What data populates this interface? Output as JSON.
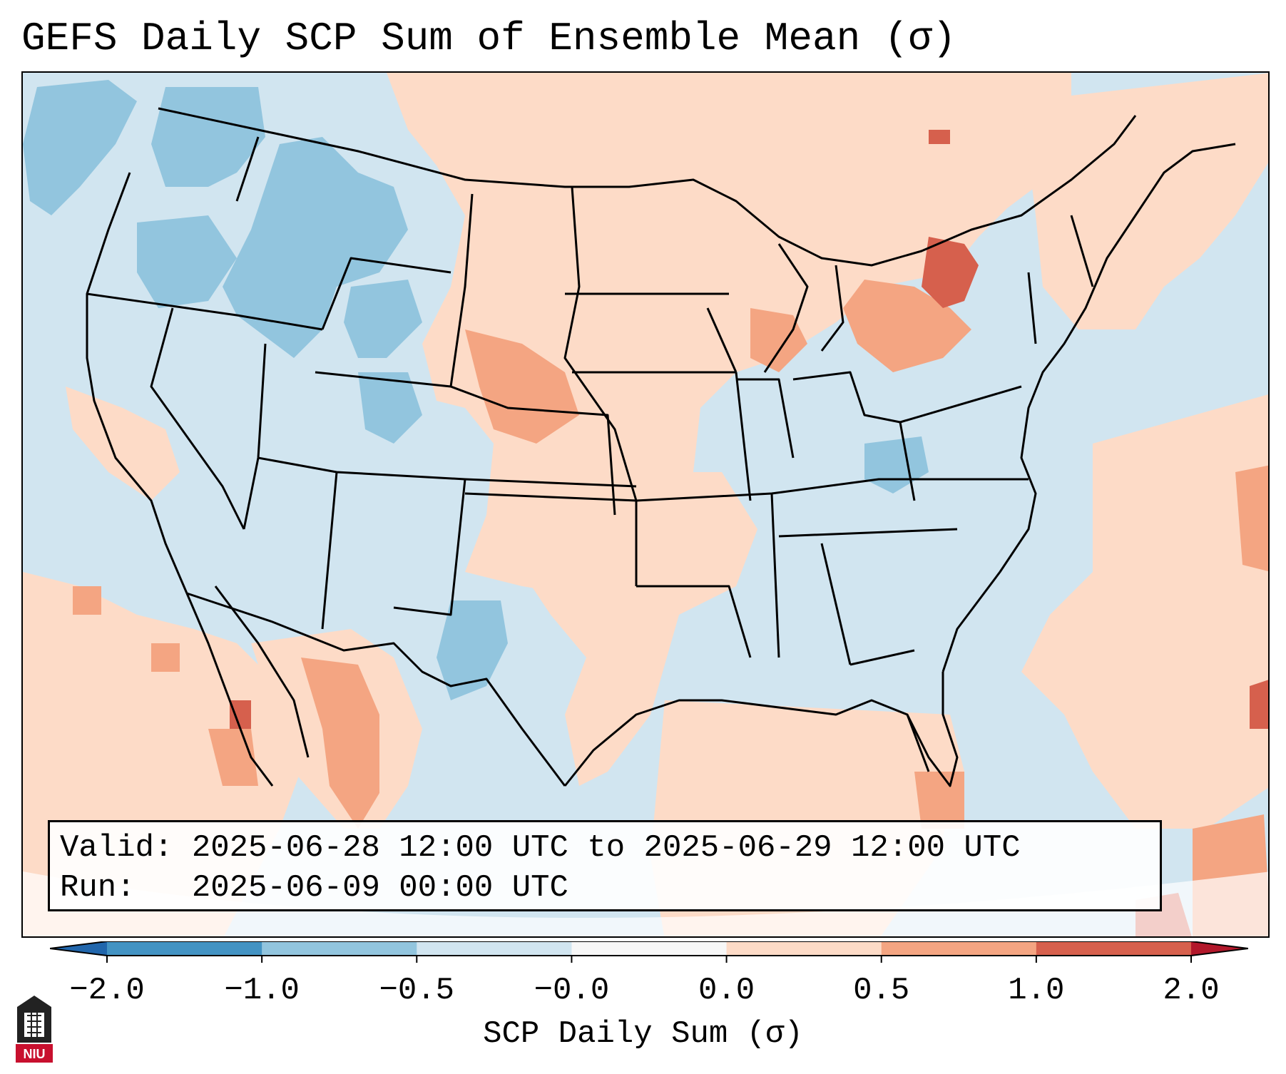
{
  "title": "GEFS Daily SCP Sum of Ensemble Mean (σ)",
  "info": {
    "valid_label": "Valid:",
    "valid_value": "2025-06-28 12:00 UTC to 2025-06-29 12:00 UTC",
    "run_label": "Run:",
    "run_value": "2025-06-09 00:00 UTC"
  },
  "colorbar": {
    "label": "SCP Daily Sum (σ)",
    "ticks": [
      "−2.0",
      "−1.0",
      "−0.5",
      "−0.0",
      "0.0",
      "0.5",
      "1.0",
      "2.0"
    ],
    "bin_colors": [
      "#4393c3",
      "#92c5de",
      "#d1e5f0",
      "#f7f7f7",
      "#fddbc7",
      "#f4a582",
      "#d6604d"
    ],
    "under_color": "#2166ac",
    "over_color": "#b2182b"
  },
  "map": {
    "background_color": "#d1e5f0",
    "region": "Contiguous United States"
  },
  "logo": {
    "text": "NIU"
  }
}
